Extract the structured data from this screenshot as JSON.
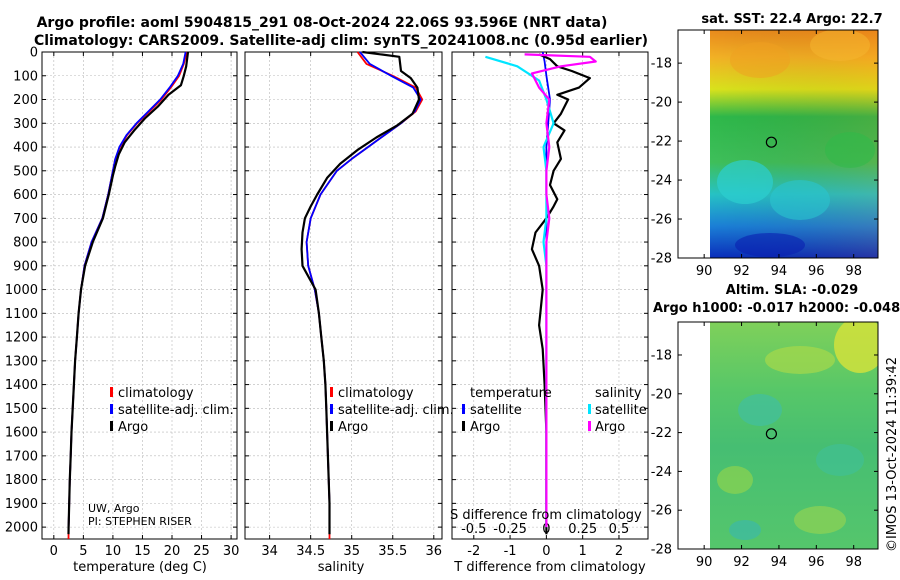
{
  "header": {
    "line1": "Argo profile: aoml 5904815_291 08-Oct-2024 22.06S 93.596E (NRT data)",
    "line2": "Climatology: CARS2009. Satellite-adj clim: synTS_20241008.nc (0.95d earlier)"
  },
  "colors": {
    "climatology": "#ff0000",
    "satellite": "#0000ff",
    "argo": "#000000",
    "satellite_sal": "#00e5ff",
    "argo_sal": "#ff00ff"
  },
  "legend": {
    "climatology": "climatology",
    "satellite_adj": "satellite-adj. clim.",
    "argo": "Argo",
    "temperature": "temperature",
    "salinity": "salinity",
    "satellite": "satellite"
  },
  "credit": {
    "line1": "UW, Argo",
    "line2": "PI: STEPHEN RISER"
  },
  "map_sst": {
    "title": "sat. SST: 22.4 Argo: 22.7",
    "lat": -22.06,
    "lon": 93.596
  },
  "map_sla": {
    "title1": "Altim. SLA: -0.029",
    "title2": "Argo h1000: -0.017 h2000: -0.048",
    "lat": -22.06,
    "lon": 93.596
  },
  "watermark": "©IMOS 13-Oct-2024 11:39:42",
  "chart_data": [
    {
      "type": "line",
      "name": "temperature",
      "xlabel": "temperature (deg C)",
      "ylabel": "",
      "xlim": [
        -2,
        31
      ],
      "ylim": [
        0,
        2050
      ],
      "xticks": [
        "0",
        "5",
        "10",
        "15",
        "20",
        "25",
        "30"
      ],
      "yticks": [
        "0",
        "100",
        "200",
        "300",
        "400",
        "500",
        "600",
        "700",
        "800",
        "900",
        "1000",
        "1100",
        "1200",
        "1300",
        "1400",
        "1500",
        "1600",
        "1700",
        "1800",
        "1900",
        "2000"
      ],
      "series": [
        {
          "name": "climatology",
          "points": [
            [
              22.5,
              0
            ],
            [
              22.0,
              50
            ],
            [
              21.2,
              100
            ],
            [
              19.8,
              150
            ],
            [
              18.2,
              200
            ],
            [
              16.2,
              250
            ],
            [
              14.1,
              300
            ],
            [
              12.4,
              350
            ],
            [
              11.2,
              400
            ],
            [
              10.4,
              450
            ],
            [
              10.0,
              500
            ],
            [
              9.2,
              600
            ],
            [
              8.2,
              700
            ],
            [
              6.4,
              800
            ],
            [
              5.2,
              900
            ],
            [
              4.6,
              1000
            ],
            [
              4.2,
              1100
            ],
            [
              3.9,
              1200
            ],
            [
              3.6,
              1300
            ],
            [
              3.4,
              1400
            ],
            [
              3.2,
              1500
            ],
            [
              3.0,
              1600
            ],
            [
              2.85,
              1700
            ],
            [
              2.7,
              1800
            ],
            [
              2.6,
              1900
            ],
            [
              2.5,
              2000
            ],
            [
              2.48,
              2050
            ]
          ]
        },
        {
          "name": "satellite-adj. clim.",
          "points": [
            [
              22.3,
              0
            ],
            [
              21.9,
              50
            ],
            [
              21.0,
              100
            ],
            [
              19.6,
              150
            ],
            [
              18.0,
              200
            ],
            [
              16.0,
              250
            ],
            [
              14.0,
              300
            ],
            [
              12.3,
              350
            ],
            [
              11.1,
              400
            ],
            [
              10.4,
              450
            ],
            [
              10.0,
              500
            ],
            [
              9.2,
              600
            ],
            [
              8.2,
              700
            ],
            [
              6.4,
              800
            ],
            [
              5.2,
              900
            ],
            [
              4.6,
              1000
            ],
            [
              4.2,
              1100
            ],
            [
              3.9,
              1200
            ],
            [
              3.6,
              1300
            ],
            [
              3.4,
              1400
            ],
            [
              3.2,
              1500
            ],
            [
              3.0,
              1600
            ],
            [
              2.85,
              1700
            ],
            [
              2.7,
              1800
            ],
            [
              2.6,
              1900
            ],
            [
              2.5,
              2000
            ]
          ]
        },
        {
          "name": "Argo",
          "points": [
            [
              22.7,
              0
            ],
            [
              22.4,
              60
            ],
            [
              22.0,
              100
            ],
            [
              21.5,
              140
            ],
            [
              19.4,
              180
            ],
            [
              17.6,
              230
            ],
            [
              15.4,
              280
            ],
            [
              13.6,
              330
            ],
            [
              12.0,
              380
            ],
            [
              11.0,
              430
            ],
            [
              10.4,
              480
            ],
            [
              10.0,
              520
            ],
            [
              9.3,
              600
            ],
            [
              8.3,
              700
            ],
            [
              6.6,
              800
            ],
            [
              5.3,
              900
            ],
            [
              4.6,
              1000
            ],
            [
              4.2,
              1100
            ],
            [
              3.9,
              1200
            ],
            [
              3.6,
              1300
            ],
            [
              3.4,
              1400
            ],
            [
              3.2,
              1500
            ],
            [
              3.0,
              1600
            ],
            [
              2.85,
              1700
            ],
            [
              2.7,
              1800
            ],
            [
              2.6,
              1900
            ],
            [
              2.5,
              2000
            ],
            [
              2.48,
              2030
            ]
          ]
        }
      ]
    },
    {
      "type": "line",
      "name": "salinity",
      "xlabel": "salinity",
      "ylabel": "",
      "xlim": [
        33.7,
        36.1
      ],
      "ylim": [
        0,
        2050
      ],
      "xticks": [
        "34",
        "34.5",
        "35",
        "35.5",
        "36"
      ],
      "series": [
        {
          "name": "climatology",
          "points": [
            [
              35.07,
              0
            ],
            [
              35.18,
              50
            ],
            [
              35.5,
              100
            ],
            [
              35.78,
              150
            ],
            [
              35.86,
              200
            ],
            [
              35.78,
              250
            ],
            [
              35.6,
              300
            ],
            [
              35.4,
              350
            ],
            [
              35.2,
              400
            ],
            [
              35.0,
              450
            ],
            [
              34.82,
              500
            ],
            [
              34.62,
              600
            ],
            [
              34.5,
              700
            ],
            [
              34.45,
              800
            ],
            [
              34.47,
              900
            ],
            [
              34.55,
              1000
            ],
            [
              34.6,
              1100
            ],
            [
              34.63,
              1200
            ],
            [
              34.66,
              1300
            ],
            [
              34.68,
              1400
            ],
            [
              34.69,
              1500
            ],
            [
              34.7,
              1600
            ],
            [
              34.71,
              1700
            ],
            [
              34.72,
              1800
            ],
            [
              34.73,
              1900
            ],
            [
              34.73,
              2000
            ],
            [
              34.73,
              2050
            ]
          ]
        },
        {
          "name": "satellite-adj. clim.",
          "points": [
            [
              35.1,
              0
            ],
            [
              35.22,
              50
            ],
            [
              35.48,
              100
            ],
            [
              35.75,
              150
            ],
            [
              35.84,
              200
            ],
            [
              35.77,
              250
            ],
            [
              35.6,
              300
            ],
            [
              35.4,
              350
            ],
            [
              35.2,
              400
            ],
            [
              35.0,
              450
            ],
            [
              34.82,
              500
            ],
            [
              34.62,
              600
            ],
            [
              34.5,
              700
            ],
            [
              34.45,
              800
            ],
            [
              34.47,
              900
            ],
            [
              34.55,
              1000
            ],
            [
              34.6,
              1100
            ],
            [
              34.63,
              1200
            ],
            [
              34.66,
              1300
            ],
            [
              34.68,
              1400
            ],
            [
              34.69,
              1500
            ],
            [
              34.7,
              1600
            ],
            [
              34.71,
              1700
            ],
            [
              34.72,
              1800
            ],
            [
              34.73,
              1900
            ],
            [
              34.73,
              2000
            ]
          ]
        },
        {
          "name": "Argo",
          "points": [
            [
              35.13,
              0
            ],
            [
              35.58,
              20
            ],
            [
              35.6,
              80
            ],
            [
              35.72,
              110
            ],
            [
              35.8,
              150
            ],
            [
              35.82,
              200
            ],
            [
              35.74,
              260
            ],
            [
              35.55,
              310
            ],
            [
              35.3,
              360
            ],
            [
              35.08,
              410
            ],
            [
              34.86,
              470
            ],
            [
              34.7,
              530
            ],
            [
              34.58,
              600
            ],
            [
              34.5,
              650
            ],
            [
              34.43,
              700
            ],
            [
              34.4,
              760
            ],
            [
              34.39,
              830
            ],
            [
              34.4,
              900
            ],
            [
              34.48,
              950
            ],
            [
              34.56,
              1000
            ],
            [
              34.6,
              1100
            ],
            [
              34.63,
              1200
            ],
            [
              34.66,
              1300
            ],
            [
              34.68,
              1400
            ],
            [
              34.69,
              1500
            ],
            [
              34.7,
              1600
            ],
            [
              34.71,
              1700
            ],
            [
              34.72,
              1800
            ],
            [
              34.73,
              1900
            ],
            [
              34.73,
              2030
            ]
          ]
        }
      ]
    },
    {
      "type": "line",
      "name": "difference",
      "xlabel": "T difference from climatology",
      "xlabel2": "S difference from climatology",
      "xlim": [
        -2.6,
        2.8
      ],
      "ylim": [
        0,
        2050
      ],
      "xticks": [
        "-2",
        "-1",
        "0",
        "1",
        "2"
      ],
      "sticks": [
        "-0.5",
        "-0.25",
        "0",
        "0.25",
        "0.5"
      ],
      "series": [
        {
          "name": "temperature satellite",
          "points": [
            [
              -0.1,
              0
            ],
            [
              -0.05,
              40
            ],
            [
              0.0,
              100
            ],
            [
              0.1,
              200
            ],
            [
              0.05,
              300
            ],
            [
              0.0,
              400
            ],
            [
              0.0,
              500
            ],
            [
              0.0,
              600
            ],
            [
              0.0,
              700
            ],
            [
              0.0,
              800
            ],
            [
              0.0,
              1000
            ],
            [
              0.0,
              1500
            ],
            [
              0.0,
              2000
            ]
          ]
        },
        {
          "name": "temperature Argo",
          "points": [
            [
              -0.2,
              10
            ],
            [
              0.1,
              30
            ],
            [
              0.3,
              60
            ],
            [
              0.7,
              80
            ],
            [
              1.2,
              110
            ],
            [
              0.9,
              150
            ],
            [
              0.3,
              180
            ],
            [
              0.6,
              200
            ],
            [
              0.4,
              260
            ],
            [
              0.2,
              300
            ],
            [
              0.5,
              330
            ],
            [
              0.3,
              380
            ],
            [
              0.4,
              450
            ],
            [
              0.2,
              500
            ],
            [
              0.1,
              560
            ],
            [
              0.3,
              620
            ],
            [
              0.2,
              650
            ],
            [
              0.0,
              700
            ],
            [
              -0.3,
              760
            ],
            [
              -0.4,
              830
            ],
            [
              -0.2,
              900
            ],
            [
              -0.1,
              1000
            ],
            [
              -0.2,
              1150
            ],
            [
              -0.1,
              1250
            ],
            [
              -0.05,
              1400
            ],
            [
              0.0,
              1600
            ],
            [
              0.0,
              1800
            ],
            [
              0.0,
              2030
            ]
          ]
        },
        {
          "name": "salinity satellite",
          "points": [
            [
              -0.42,
              20
            ],
            [
              -0.2,
              60
            ],
            [
              -0.05,
              120
            ],
            [
              0.0,
              200
            ],
            [
              0.05,
              300
            ],
            [
              -0.02,
              400
            ],
            [
              0.0,
              500
            ],
            [
              0.0,
              600
            ],
            [
              0.0,
              700
            ],
            [
              -0.02,
              800
            ],
            [
              0.0,
              900
            ],
            [
              0.0,
              1000
            ],
            [
              0.0,
              1500
            ],
            [
              0.0,
              2000
            ]
          ]
        },
        {
          "name": "salinity Argo",
          "points": [
            [
              -0.15,
              10
            ],
            [
              0.3,
              20
            ],
            [
              0.34,
              40
            ],
            [
              0.1,
              60
            ],
            [
              -0.1,
              90
            ],
            [
              -0.05,
              150
            ],
            [
              0.02,
              200
            ],
            [
              0.0,
              300
            ],
            [
              0.02,
              400
            ],
            [
              0.0,
              500
            ],
            [
              0.0,
              600
            ],
            [
              0.02,
              700
            ],
            [
              0.0,
              800
            ],
            [
              0.0,
              900
            ],
            [
              0.0,
              1000
            ],
            [
              0.0,
              1500
            ],
            [
              0.0,
              2000
            ]
          ]
        }
      ]
    },
    {
      "type": "heatmap",
      "name": "sat. SST map",
      "xlim": [
        88.6,
        99.3
      ],
      "ylim": [
        -28,
        -16.3
      ],
      "xticks": [
        "90",
        "92",
        "94",
        "96",
        "98"
      ],
      "yticks": [
        "-18",
        "-20",
        "-22",
        "-24",
        "-26",
        "-28"
      ]
    },
    {
      "type": "heatmap",
      "name": "altimetry SLA map",
      "xlim": [
        88.6,
        99.3
      ],
      "ylim": [
        -28,
        -16.3
      ],
      "xticks": [
        "90",
        "92",
        "94",
        "96",
        "98"
      ],
      "yticks": [
        "-18",
        "-20",
        "-22",
        "-24",
        "-26",
        "-28"
      ]
    }
  ]
}
